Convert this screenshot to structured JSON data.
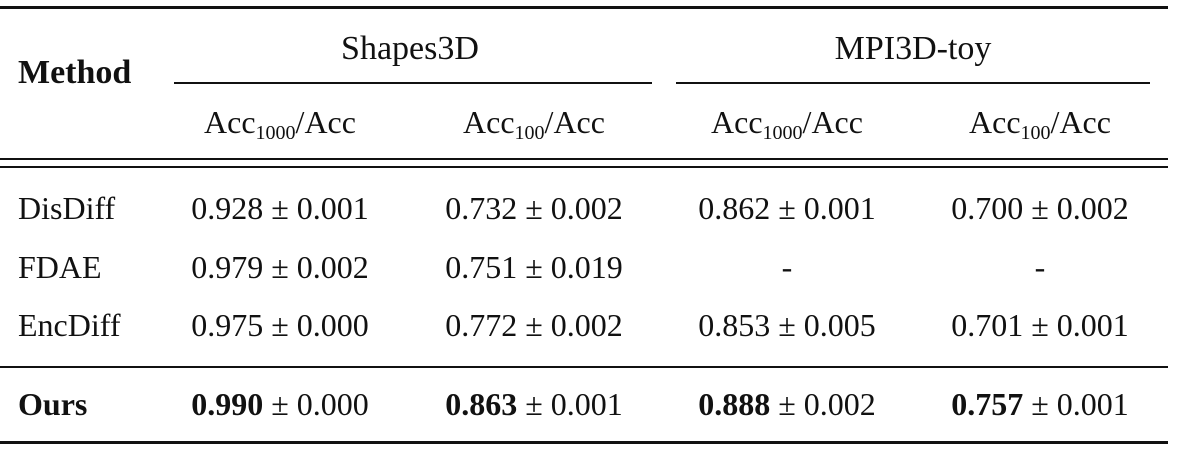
{
  "table": {
    "method_header": "Method",
    "groups": [
      {
        "name": "Shapes3D",
        "cols": [
          "Acc",
          "Acc"
        ],
        "subs": [
          "1000",
          "100"
        ]
      },
      {
        "name": "MPI3D-toy",
        "cols": [
          "Acc",
          "Acc"
        ],
        "subs": [
          "1000",
          "100"
        ]
      }
    ],
    "col_suffix": "/Acc",
    "rows": [
      {
        "method": "DisDiff",
        "bold": false,
        "cells": [
          {
            "mean": "0.928",
            "pm": "±",
            "std": "0.001"
          },
          {
            "mean": "0.732",
            "pm": "±",
            "std": "0.002"
          },
          {
            "mean": "0.862",
            "pm": "±",
            "std": "0.001"
          },
          {
            "mean": "0.700",
            "pm": "±",
            "std": "0.002"
          }
        ]
      },
      {
        "method": "FDAE",
        "bold": false,
        "cells": [
          {
            "mean": "0.979",
            "pm": "±",
            "std": "0.002"
          },
          {
            "mean": "0.751",
            "pm": "±",
            "std": "0.019"
          },
          {
            "mean": "-",
            "pm": "",
            "std": ""
          },
          {
            "mean": "-",
            "pm": "",
            "std": ""
          }
        ]
      },
      {
        "method": "EncDiff",
        "bold": false,
        "cells": [
          {
            "mean": "0.975",
            "pm": "±",
            "std": "0.000"
          },
          {
            "mean": "0.772",
            "pm": "±",
            "std": "0.002"
          },
          {
            "mean": "0.853",
            "pm": "±",
            "std": "0.005"
          },
          {
            "mean": "0.701",
            "pm": "±",
            "std": "0.001"
          }
        ]
      },
      {
        "method": "Ours",
        "bold": true,
        "cells": [
          {
            "mean": "0.990",
            "pm": "±",
            "std": "0.000"
          },
          {
            "mean": "0.863",
            "pm": "±",
            "std": "0.001"
          },
          {
            "mean": "0.888",
            "pm": "±",
            "std": "0.002"
          },
          {
            "mean": "0.757",
            "pm": "±",
            "std": "0.001"
          }
        ]
      }
    ]
  }
}
